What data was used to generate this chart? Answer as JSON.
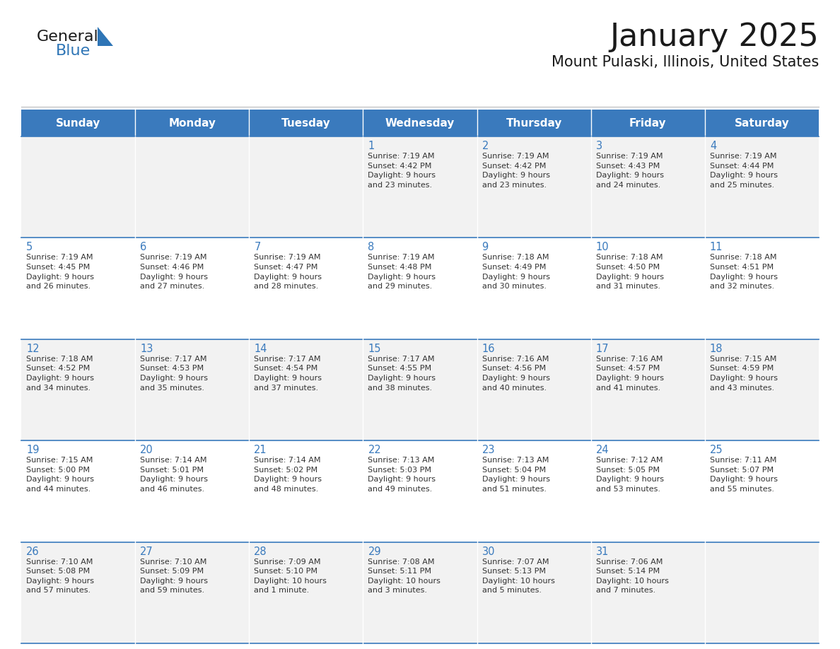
{
  "title": "January 2025",
  "subtitle": "Mount Pulaski, Illinois, United States",
  "header_bg_color": "#3A7ABD",
  "header_text_color": "#FFFFFF",
  "cell_bg_light": "#F2F2F2",
  "cell_bg_white": "#FFFFFF",
  "border_color": "#3A7ABD",
  "title_color": "#1a1a1a",
  "subtitle_color": "#1a1a1a",
  "text_color": "#333333",
  "day_num_color": "#3A7ABD",
  "days_of_week": [
    "Sunday",
    "Monday",
    "Tuesday",
    "Wednesday",
    "Thursday",
    "Friday",
    "Saturday"
  ],
  "calendar": [
    [
      {
        "day": "",
        "info": ""
      },
      {
        "day": "",
        "info": ""
      },
      {
        "day": "",
        "info": ""
      },
      {
        "day": "1",
        "info": "Sunrise: 7:19 AM\nSunset: 4:42 PM\nDaylight: 9 hours\nand 23 minutes."
      },
      {
        "day": "2",
        "info": "Sunrise: 7:19 AM\nSunset: 4:42 PM\nDaylight: 9 hours\nand 23 minutes."
      },
      {
        "day": "3",
        "info": "Sunrise: 7:19 AM\nSunset: 4:43 PM\nDaylight: 9 hours\nand 24 minutes."
      },
      {
        "day": "4",
        "info": "Sunrise: 7:19 AM\nSunset: 4:44 PM\nDaylight: 9 hours\nand 25 minutes."
      }
    ],
    [
      {
        "day": "5",
        "info": "Sunrise: 7:19 AM\nSunset: 4:45 PM\nDaylight: 9 hours\nand 26 minutes."
      },
      {
        "day": "6",
        "info": "Sunrise: 7:19 AM\nSunset: 4:46 PM\nDaylight: 9 hours\nand 27 minutes."
      },
      {
        "day": "7",
        "info": "Sunrise: 7:19 AM\nSunset: 4:47 PM\nDaylight: 9 hours\nand 28 minutes."
      },
      {
        "day": "8",
        "info": "Sunrise: 7:19 AM\nSunset: 4:48 PM\nDaylight: 9 hours\nand 29 minutes."
      },
      {
        "day": "9",
        "info": "Sunrise: 7:18 AM\nSunset: 4:49 PM\nDaylight: 9 hours\nand 30 minutes."
      },
      {
        "day": "10",
        "info": "Sunrise: 7:18 AM\nSunset: 4:50 PM\nDaylight: 9 hours\nand 31 minutes."
      },
      {
        "day": "11",
        "info": "Sunrise: 7:18 AM\nSunset: 4:51 PM\nDaylight: 9 hours\nand 32 minutes."
      }
    ],
    [
      {
        "day": "12",
        "info": "Sunrise: 7:18 AM\nSunset: 4:52 PM\nDaylight: 9 hours\nand 34 minutes."
      },
      {
        "day": "13",
        "info": "Sunrise: 7:17 AM\nSunset: 4:53 PM\nDaylight: 9 hours\nand 35 minutes."
      },
      {
        "day": "14",
        "info": "Sunrise: 7:17 AM\nSunset: 4:54 PM\nDaylight: 9 hours\nand 37 minutes."
      },
      {
        "day": "15",
        "info": "Sunrise: 7:17 AM\nSunset: 4:55 PM\nDaylight: 9 hours\nand 38 minutes."
      },
      {
        "day": "16",
        "info": "Sunrise: 7:16 AM\nSunset: 4:56 PM\nDaylight: 9 hours\nand 40 minutes."
      },
      {
        "day": "17",
        "info": "Sunrise: 7:16 AM\nSunset: 4:57 PM\nDaylight: 9 hours\nand 41 minutes."
      },
      {
        "day": "18",
        "info": "Sunrise: 7:15 AM\nSunset: 4:59 PM\nDaylight: 9 hours\nand 43 minutes."
      }
    ],
    [
      {
        "day": "19",
        "info": "Sunrise: 7:15 AM\nSunset: 5:00 PM\nDaylight: 9 hours\nand 44 minutes."
      },
      {
        "day": "20",
        "info": "Sunrise: 7:14 AM\nSunset: 5:01 PM\nDaylight: 9 hours\nand 46 minutes."
      },
      {
        "day": "21",
        "info": "Sunrise: 7:14 AM\nSunset: 5:02 PM\nDaylight: 9 hours\nand 48 minutes."
      },
      {
        "day": "22",
        "info": "Sunrise: 7:13 AM\nSunset: 5:03 PM\nDaylight: 9 hours\nand 49 minutes."
      },
      {
        "day": "23",
        "info": "Sunrise: 7:13 AM\nSunset: 5:04 PM\nDaylight: 9 hours\nand 51 minutes."
      },
      {
        "day": "24",
        "info": "Sunrise: 7:12 AM\nSunset: 5:05 PM\nDaylight: 9 hours\nand 53 minutes."
      },
      {
        "day": "25",
        "info": "Sunrise: 7:11 AM\nSunset: 5:07 PM\nDaylight: 9 hours\nand 55 minutes."
      }
    ],
    [
      {
        "day": "26",
        "info": "Sunrise: 7:10 AM\nSunset: 5:08 PM\nDaylight: 9 hours\nand 57 minutes."
      },
      {
        "day": "27",
        "info": "Sunrise: 7:10 AM\nSunset: 5:09 PM\nDaylight: 9 hours\nand 59 minutes."
      },
      {
        "day": "28",
        "info": "Sunrise: 7:09 AM\nSunset: 5:10 PM\nDaylight: 10 hours\nand 1 minute."
      },
      {
        "day": "29",
        "info": "Sunrise: 7:08 AM\nSunset: 5:11 PM\nDaylight: 10 hours\nand 3 minutes."
      },
      {
        "day": "30",
        "info": "Sunrise: 7:07 AM\nSunset: 5:13 PM\nDaylight: 10 hours\nand 5 minutes."
      },
      {
        "day": "31",
        "info": "Sunrise: 7:06 AM\nSunset: 5:14 PM\nDaylight: 10 hours\nand 7 minutes."
      },
      {
        "day": "",
        "info": ""
      }
    ]
  ],
  "logo_general_color": "#1a1a1a",
  "logo_blue_color": "#2E75B6",
  "logo_triangle_color": "#2E75B6"
}
